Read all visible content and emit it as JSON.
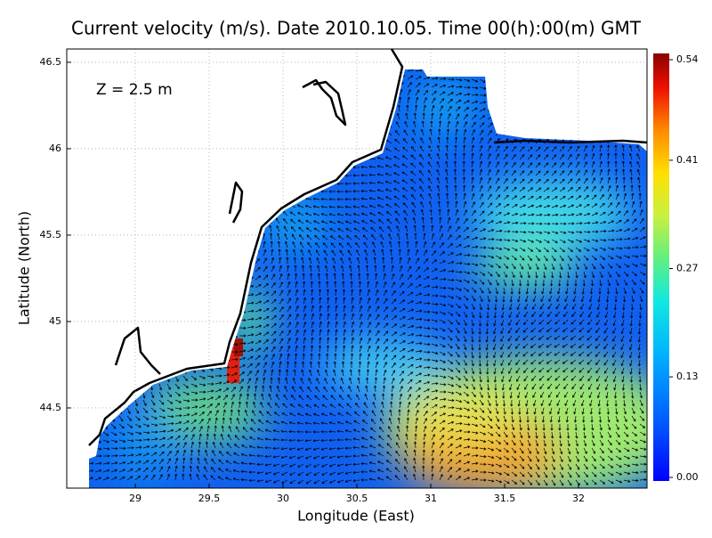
{
  "chart_data": {
    "type": "map",
    "title": "Current velocity (m/s). Date 2010.10.05. Time 00(h):00(m) GMT",
    "annotation": "Z = 2.5 m",
    "xlabel": "Longitude (East)",
    "ylabel": "Latitude (North)",
    "xlim": [
      28.536,
      32.464
    ],
    "ylim": [
      44.036,
      46.577
    ],
    "xticks": [
      29,
      29.5,
      30,
      30.5,
      31,
      31.5,
      32
    ],
    "yticks": [
      44.5,
      45,
      45.5,
      46,
      46.5
    ],
    "grid": true,
    "colorbar": {
      "clim": [
        0,
        0.54
      ],
      "ticks": [
        {
          "value": 0,
          "label": "0.00"
        },
        0.13,
        0.27,
        0.41,
        0.54
      ]
    }
  }
}
